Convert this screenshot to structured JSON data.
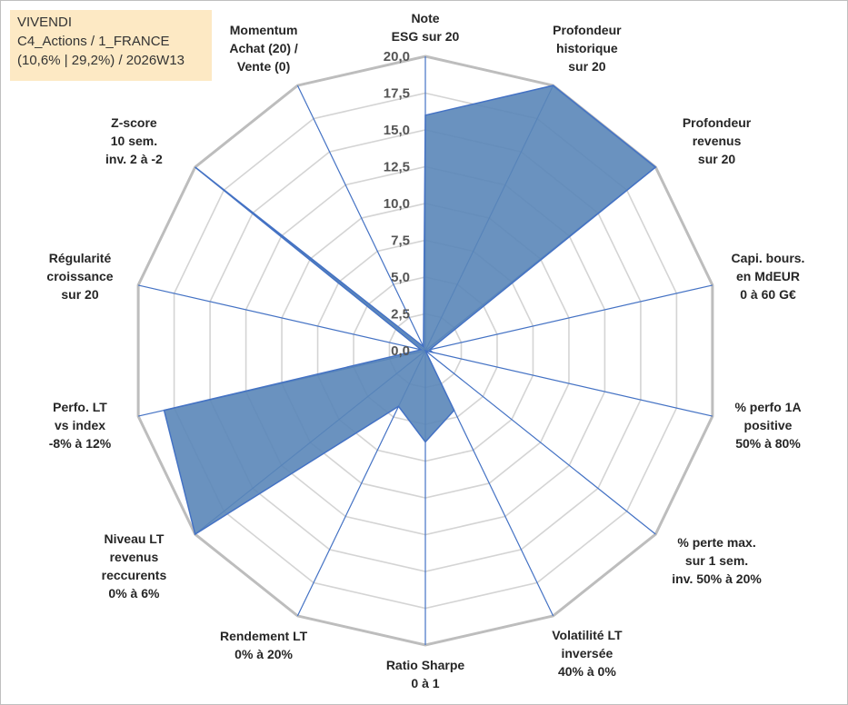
{
  "info": {
    "line1": "VIVENDI",
    "line2": "C4_Actions / 1_FRANCE",
    "line3": "(10,6% | 29,2%) / 2026W13"
  },
  "chart_data": {
    "type": "radar",
    "rmin": 0,
    "rmax": 20,
    "tick_step": 2.5,
    "ticks": [
      "0,0",
      "2,5",
      "5,0",
      "7,5",
      "10,0",
      "12,5",
      "15,0",
      "17,5",
      "20,0"
    ],
    "grid": true,
    "fill_color": "#5a86b8",
    "line_color": "#4472c4",
    "axes": [
      {
        "lines": [
          "Note",
          "ESG sur 20"
        ],
        "value": 16
      },
      {
        "lines": [
          "Profondeur",
          "historique",
          "sur 20"
        ],
        "value": 20
      },
      {
        "lines": [
          "Profondeur",
          "revenus",
          "sur 20"
        ],
        "value": 20
      },
      {
        "lines": [
          "Capi. bours.",
          "en MdEUR",
          "0 à 60 G€"
        ],
        "value": 0.3
      },
      {
        "lines": [
          "% perfo 1A",
          "positive",
          "50% à 80%"
        ],
        "value": 0.5
      },
      {
        "lines": [
          "% perte max.",
          "sur 1 sem.",
          "inv. 50% à 20%"
        ],
        "value": 0
      },
      {
        "lines": [
          "Volatilité LT",
          "inversée",
          "40% à 0%"
        ],
        "value": 4.5
      },
      {
        "lines": [
          "Ratio Sharpe",
          "0 à 1"
        ],
        "value": 6.2
      },
      {
        "lines": [
          "Rendement LT",
          "0% à 20%"
        ],
        "value": 4.2
      },
      {
        "lines": [
          "Niveau LT",
          "revenus",
          "reccurents",
          "0% à 6%"
        ],
        "value": 20
      },
      {
        "lines": [
          "Perfo. LT",
          "vs index",
          "-8% à 12%"
        ],
        "value": 18.2
      },
      {
        "lines": [
          "Régularité",
          "croissance",
          "sur 20"
        ],
        "value": 0.3
      },
      {
        "lines": [
          "Z-score",
          "10 sem.",
          "inv. 2 à -2"
        ],
        "value": 20
      },
      {
        "lines": [
          "Momentum",
          "Achat (20) /",
          "Vente (0)"
        ],
        "value": 0.3
      }
    ]
  }
}
